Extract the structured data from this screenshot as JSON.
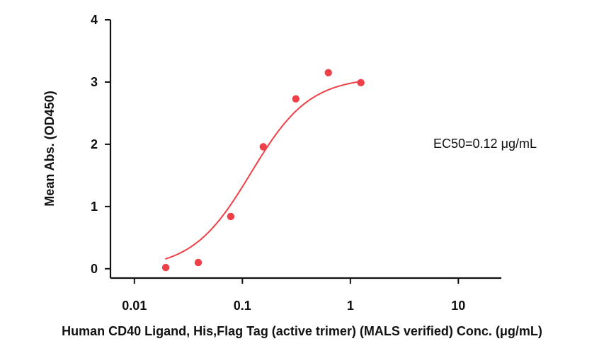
{
  "chart_data": {
    "type": "scatter",
    "subtitle": "",
    "xlabel": "Human CD40 Ligand, His,Flag Tag (active trimer) (MALS verified) Conc. (μg/mL)",
    "ylabel": "Mean Abs. (OD450)",
    "x_scale": "log",
    "xlim": [
      0.006,
      25
    ],
    "ylim": [
      -0.15,
      4
    ],
    "x_ticks": [
      0.01,
      0.1,
      1,
      10
    ],
    "x_tick_labels": [
      "0.01",
      "0.1",
      "1",
      "10"
    ],
    "y_ticks": [
      0,
      1,
      2,
      3,
      4
    ],
    "y_tick_labels": [
      "0",
      "1",
      "2",
      "3",
      "4"
    ],
    "grid": false,
    "series": [
      {
        "x": [
          0.0195,
          0.039,
          0.078,
          0.156,
          0.3125,
          0.625,
          1.25
        ],
        "y": [
          0.02,
          0.1,
          0.84,
          1.96,
          2.73,
          3.15,
          2.99
        ],
        "color": "#ef3f47"
      }
    ],
    "fit_curve": {
      "model": "4PL",
      "bottom": 0.0,
      "top": 3.08,
      "ec50": 0.12,
      "hill_slope": 1.6,
      "color": "#ef3f47"
    },
    "annotations": [
      "EC50=0.12 μg/mL"
    ]
  }
}
